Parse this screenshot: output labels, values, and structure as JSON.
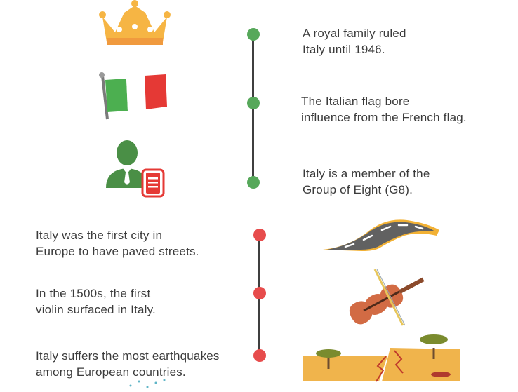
{
  "colors": {
    "timeline_top_dot": "#56a85a",
    "timeline_bottom_dot": "#e74c4c",
    "line": "#3f3f3f"
  },
  "facts_top": [
    {
      "line1": "A royal family ruled",
      "line2": "Italy until 1946.",
      "icon": "crown-icon"
    },
    {
      "line1": "The Italian flag bore",
      "line2": "influence from the French flag.",
      "icon": "italian-flag-icon"
    },
    {
      "line1": "Italy is a member of the",
      "line2": "Group of Eight (G8).",
      "icon": "businessman-document-icon"
    }
  ],
  "facts_bottom": [
    {
      "line1": "Italy was the first city in",
      "line2": "Europe to have paved streets.",
      "icon": "paved-road-icon"
    },
    {
      "line1": "In the 1500s, the first",
      "line2": "violin surfaced in Italy.",
      "icon": "violin-icon"
    },
    {
      "line1": "Italy suffers the most earthquakes",
      "line2": "among European countries.",
      "icon": "earthquake-icon"
    }
  ]
}
